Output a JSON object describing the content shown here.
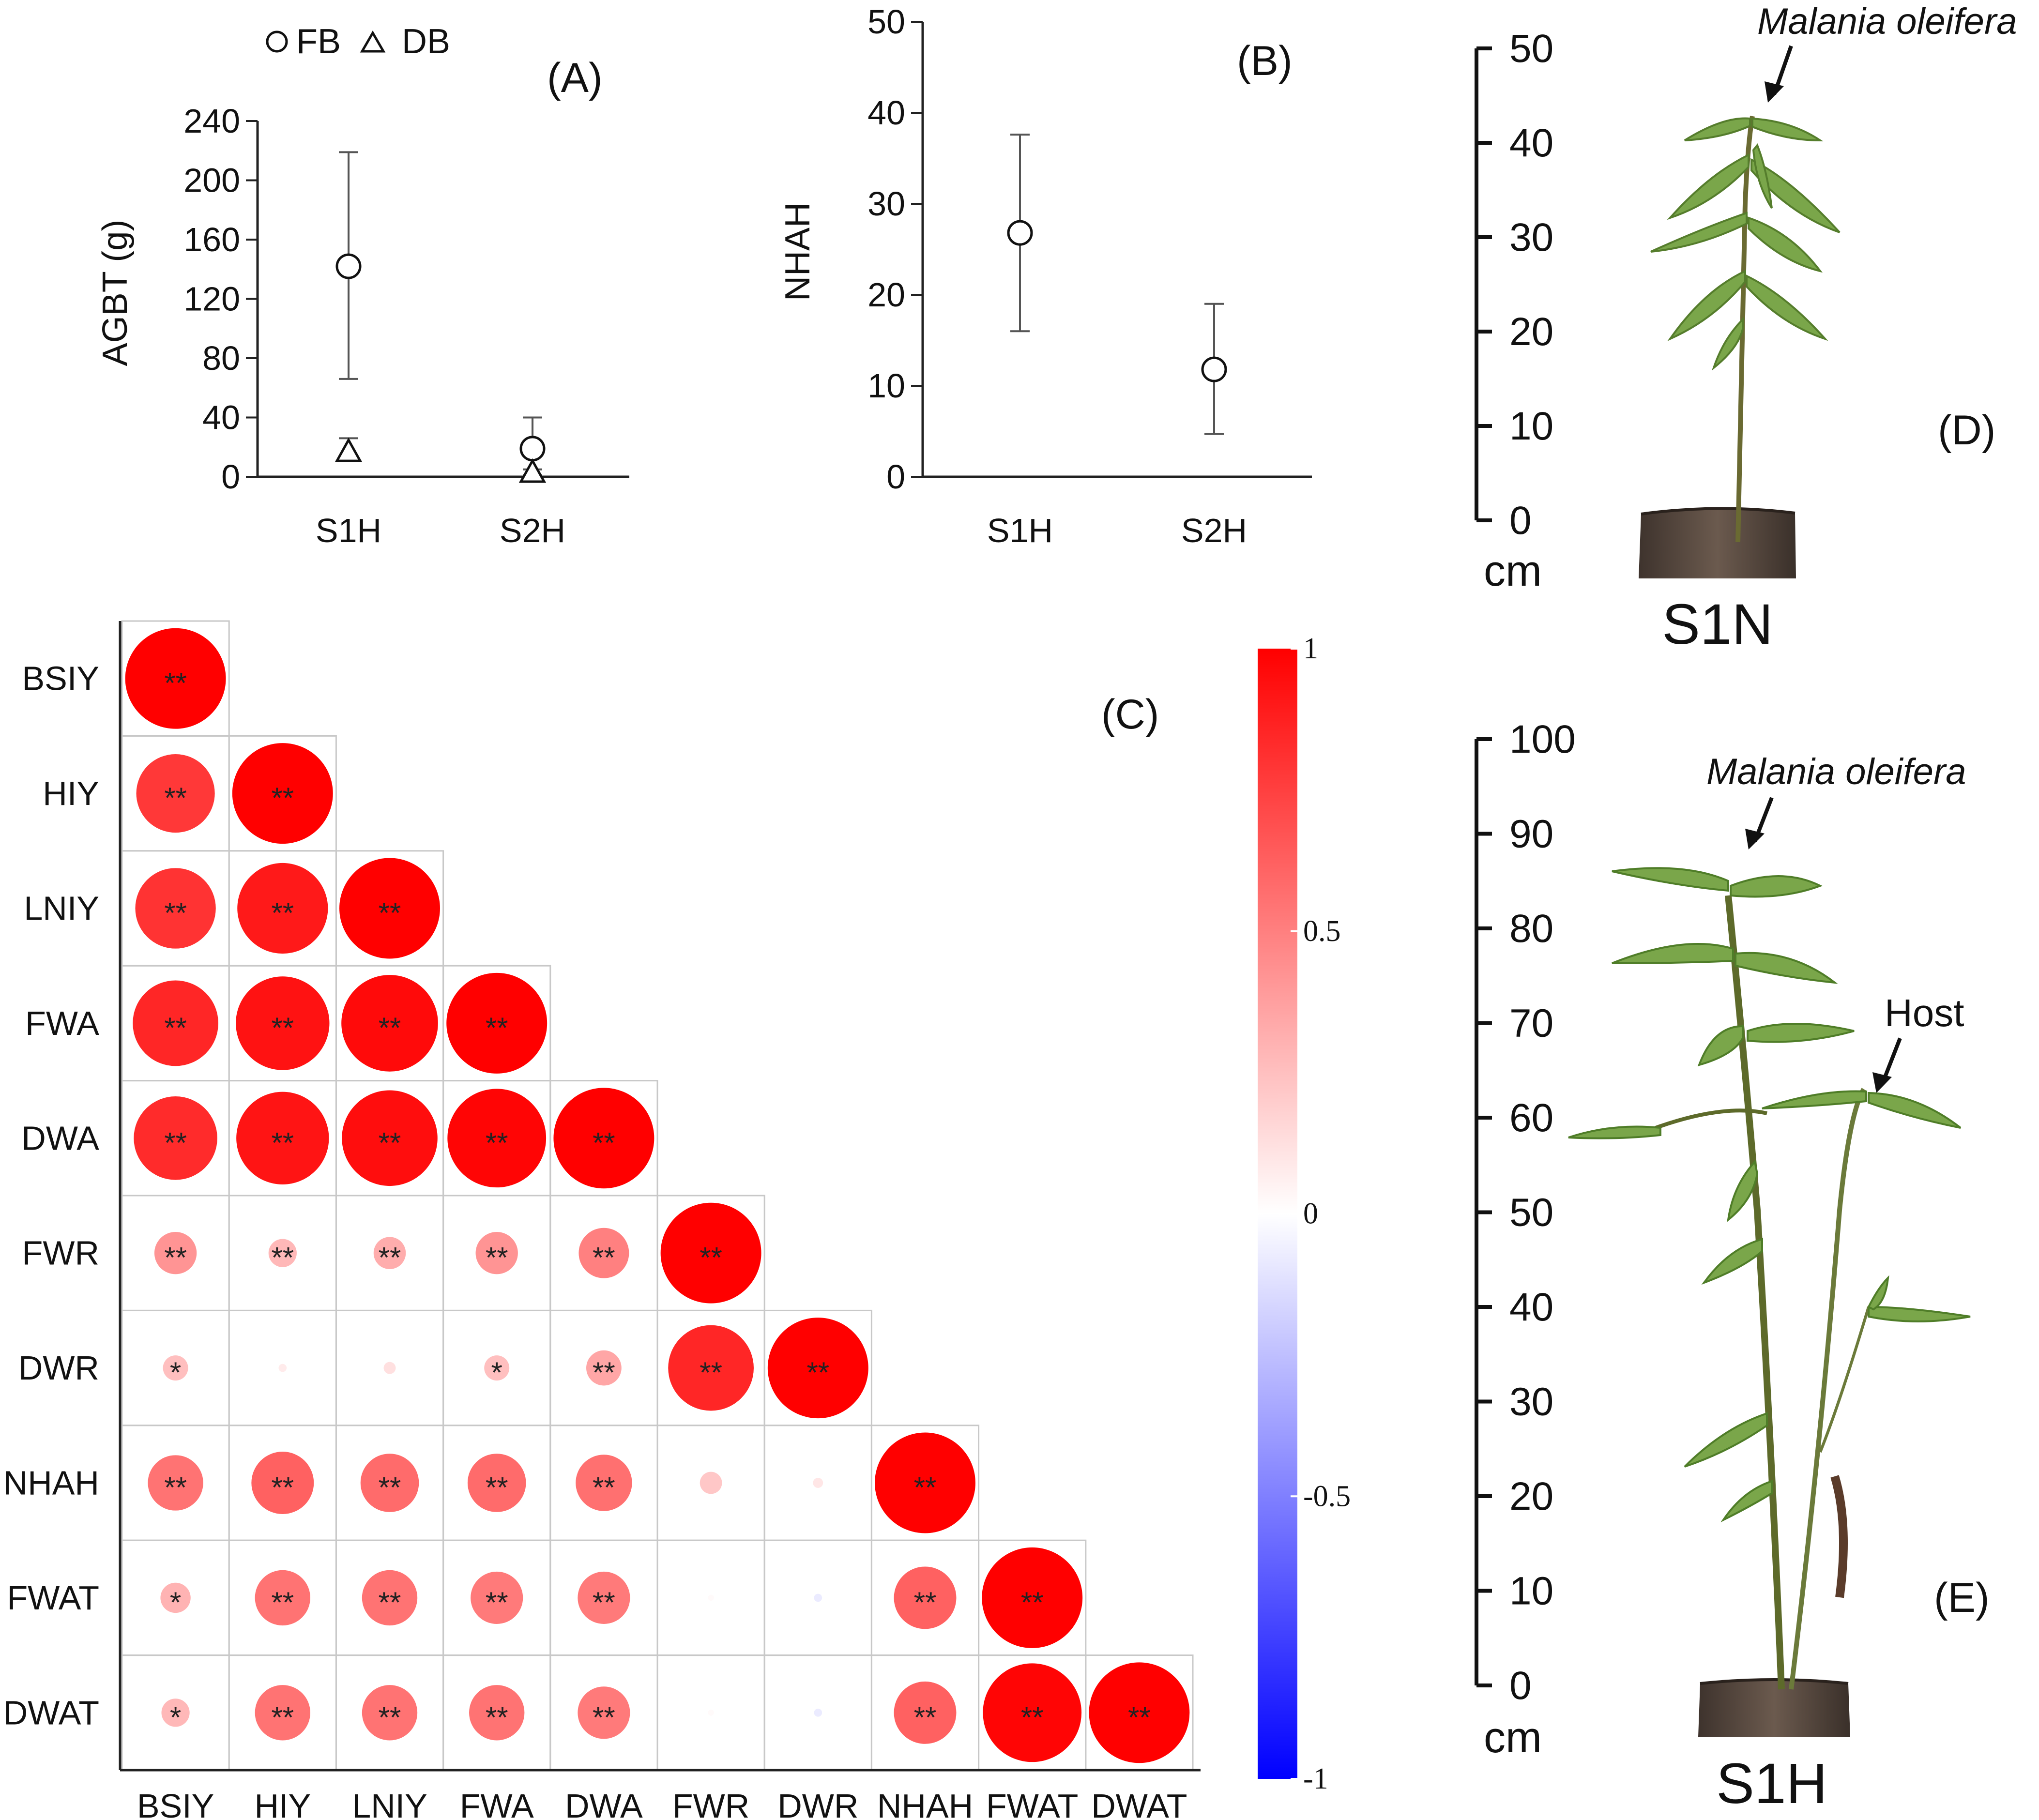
{
  "chart_data": [
    {
      "id": "A",
      "type": "scatter",
      "panel_label": "(A)",
      "ylabel": "AGBT (g)",
      "xlabel": "",
      "categories": [
        "S1H",
        "S2H"
      ],
      "ylim": [
        0,
        240
      ],
      "yticks": [
        0,
        40,
        80,
        120,
        160,
        200,
        240
      ],
      "series": [
        {
          "name": "FB",
          "marker": "circle",
          "values": [
            142,
            19
          ],
          "err_low": [
            66,
            0
          ],
          "err_high": [
            219,
            40
          ]
        },
        {
          "name": "DB",
          "marker": "triangle",
          "values": [
            17,
            3
          ],
          "err_low": [
            13,
            1
          ],
          "err_high": [
            26,
            5
          ]
        }
      ]
    },
    {
      "id": "B",
      "type": "scatter",
      "panel_label": "(B)",
      "ylabel": "NHAH",
      "xlabel": "",
      "categories": [
        "S1H",
        "S2H"
      ],
      "ylim": [
        0,
        50
      ],
      "yticks": [
        0,
        10,
        20,
        30,
        40,
        50
      ],
      "series": [
        {
          "name": "",
          "marker": "circle",
          "values": [
            26.8,
            11.8
          ],
          "err_low": [
            16,
            4.7
          ],
          "err_high": [
            37.6,
            19
          ]
        }
      ]
    },
    {
      "id": "C",
      "type": "heatmap",
      "panel_label": "(C)",
      "variables": [
        "BSIY",
        "HIY",
        "LNIY",
        "FWA",
        "DWA",
        "FWR",
        "DWR",
        "NHAH",
        "FWAT",
        "DWAT"
      ],
      "matrix": [
        [
          1.0
        ],
        [
          0.78,
          1.0
        ],
        [
          0.8,
          0.9,
          1.0
        ],
        [
          0.85,
          0.93,
          0.96,
          1.0
        ],
        [
          0.83,
          0.92,
          0.95,
          0.98,
          1.0
        ],
        [
          0.42,
          0.28,
          0.32,
          0.42,
          0.5,
          1.0
        ],
        [
          0.25,
          0.08,
          0.12,
          0.25,
          0.35,
          0.85,
          1.0
        ],
        [
          0.55,
          0.62,
          0.58,
          0.58,
          0.56,
          0.22,
          0.1,
          1.0
        ],
        [
          0.3,
          0.55,
          0.55,
          0.52,
          0.52,
          0.02,
          -0.08,
          0.62,
          1.0
        ],
        [
          0.28,
          0.55,
          0.55,
          0.55,
          0.52,
          0.02,
          -0.08,
          0.62,
          0.98,
          1.0
        ]
      ],
      "significance": [
        [
          "**"
        ],
        [
          "**",
          "**"
        ],
        [
          "**",
          "**",
          "**"
        ],
        [
          "**",
          "**",
          "**",
          "**"
        ],
        [
          "**",
          "**",
          "**",
          "**",
          "**"
        ],
        [
          "**",
          "**",
          "**",
          "**",
          "**",
          "**"
        ],
        [
          "*",
          "",
          "",
          "*",
          "**",
          "**",
          "**"
        ],
        [
          "**",
          "**",
          "**",
          "**",
          "**",
          "",
          "",
          "**"
        ],
        [
          "*",
          "**",
          "**",
          "**",
          "**",
          "",
          "",
          "**",
          "**"
        ],
        [
          "*",
          "**",
          "**",
          "**",
          "**",
          "",
          "",
          "**",
          "**",
          "**"
        ]
      ],
      "colorbar": {
        "ticks": [
          "1",
          "0.5",
          "0",
          "-0.5",
          "-1"
        ],
        "range": [
          -1,
          1
        ],
        "high_color": "#ff0000",
        "mid_color": "#ffffff",
        "low_color": "#0000ff"
      }
    }
  ],
  "photos": {
    "D": {
      "panel_label": "(D)",
      "caption": "S1N",
      "annotation": "Malania oleifera",
      "unit": "cm",
      "scale_ticks": [
        "0",
        "10",
        "20",
        "30",
        "40",
        "50"
      ]
    },
    "E": {
      "panel_label": "(E)",
      "caption": "S1H",
      "annotation": "Malania oleifera",
      "host_annotation": "Host",
      "unit": "cm",
      "scale_ticks": [
        "0",
        "10",
        "20",
        "30",
        "40",
        "50",
        "60",
        "70",
        "80",
        "90",
        "100"
      ]
    }
  },
  "colors": {
    "circle": "#ff0000",
    "leaf": "#6a9a3a",
    "leaf_dark": "#4f7d28",
    "stem": "#5d6a2a",
    "pot": "#5a4a40"
  }
}
